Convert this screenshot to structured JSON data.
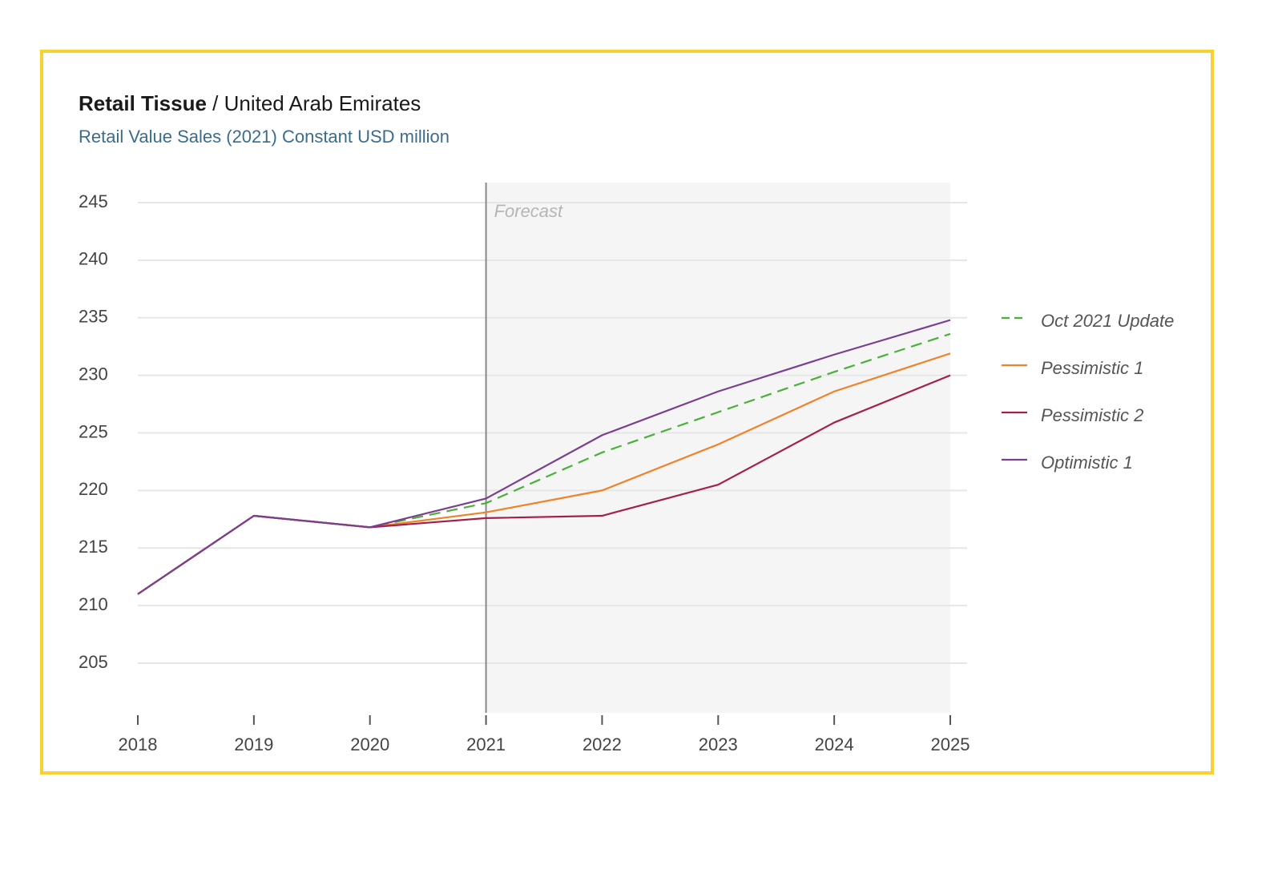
{
  "header": {
    "title_bold": "Retail Tissue",
    "title_rest": " / United Arab Emirates",
    "subtitle": "Retail Value Sales (2021) Constant USD million"
  },
  "colors": {
    "frame": "#f8d12f",
    "forecast_shade": "#f5f5f5",
    "grid": "#e6e6e6"
  },
  "chart_data": {
    "type": "line",
    "x": [
      2018,
      2019,
      2020,
      2021,
      2022,
      2023,
      2024,
      2025
    ],
    "xlabel": "",
    "ylabel": "",
    "ylim": [
      200,
      245
    ],
    "yticks": [
      205,
      210,
      215,
      220,
      225,
      230,
      235,
      240,
      245
    ],
    "grid": true,
    "forecast_start": 2021,
    "forecast_label": "Forecast",
    "legend_position": "right",
    "series": [
      {
        "name": "Oct 2021 Update",
        "color": "#4caf3a",
        "dashed": true,
        "values": [
          211.0,
          217.8,
          216.8,
          218.9,
          223.3,
          226.8,
          230.3,
          233.6
        ]
      },
      {
        "name": "Pessimistic 1",
        "color": "#f0822a",
        "dashed": false,
        "values": [
          211.0,
          217.8,
          216.8,
          218.1,
          220.0,
          224.0,
          228.6,
          231.9
        ]
      },
      {
        "name": "Pessimistic 2",
        "color": "#a3204a",
        "dashed": false,
        "values": [
          211.0,
          217.8,
          216.8,
          217.6,
          217.8,
          220.5,
          225.9,
          230.0
        ]
      },
      {
        "name": "Optimistic 1",
        "color": "#7b3f8f",
        "dashed": false,
        "values": [
          211.0,
          217.8,
          216.8,
          219.3,
          224.8,
          228.6,
          231.8,
          234.8
        ]
      }
    ]
  }
}
